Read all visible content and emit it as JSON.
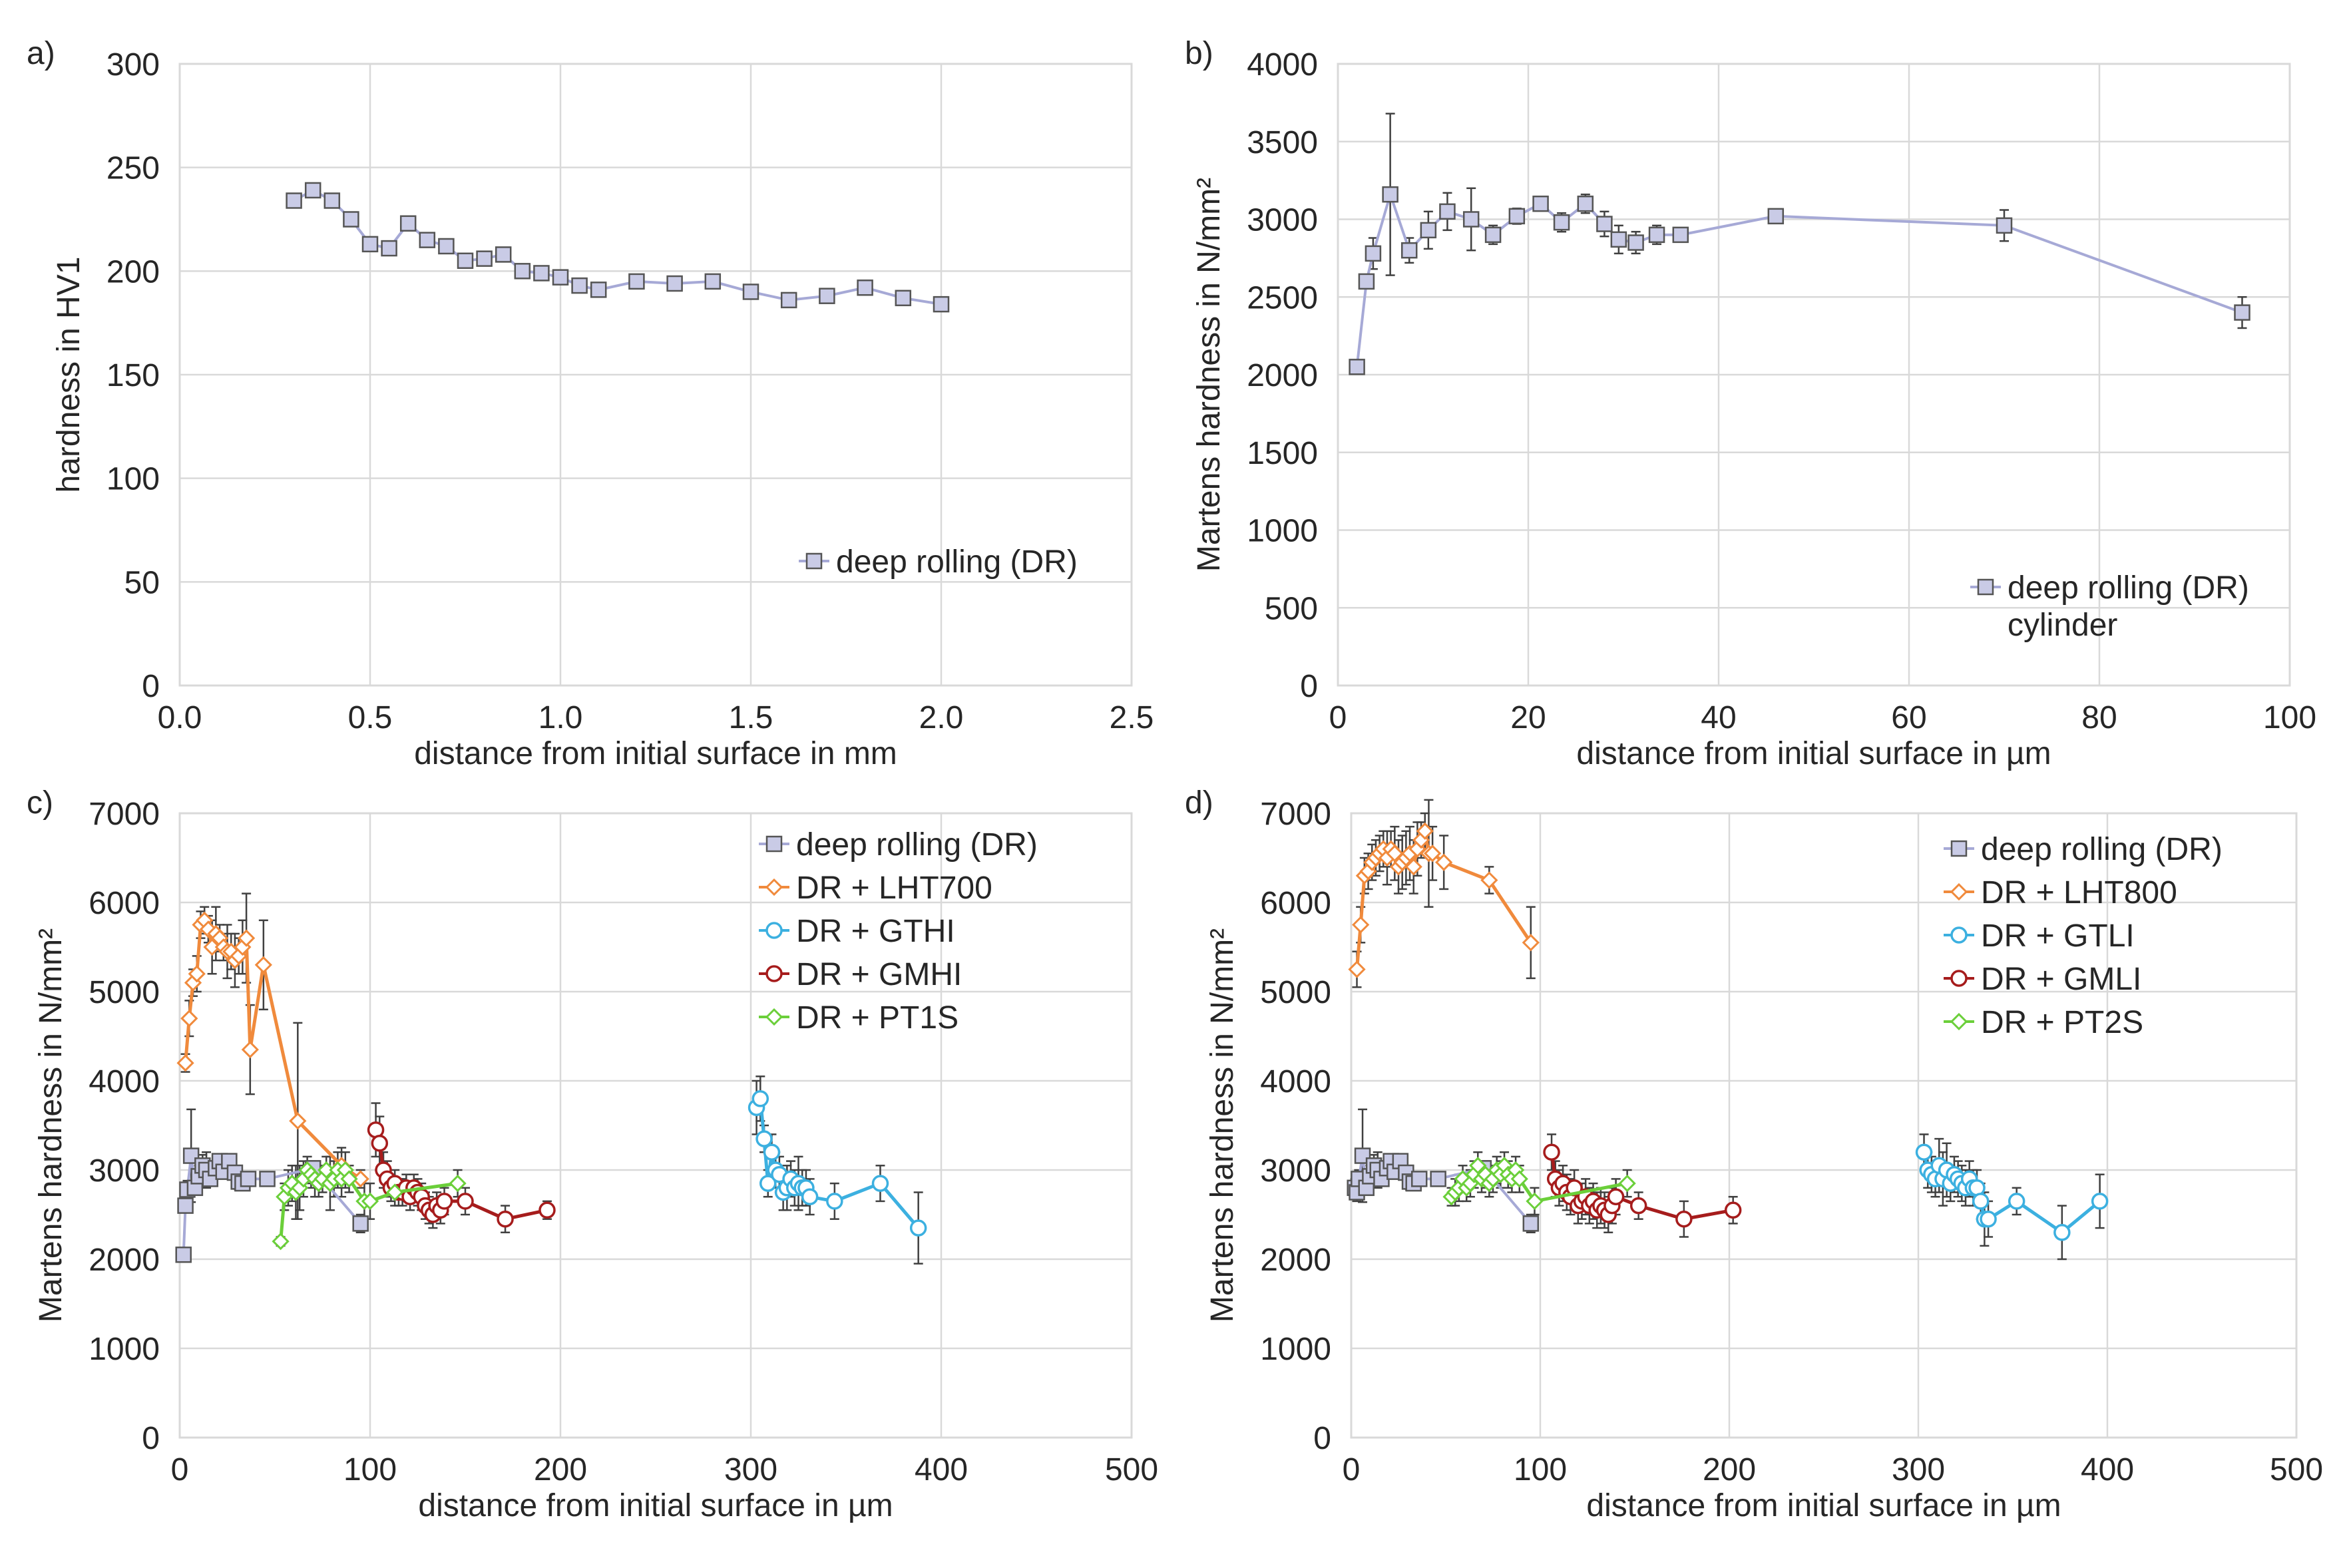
{
  "colors": {
    "dr": "#a6a9d6",
    "dr_fill": "#c9cbe6",
    "lht": "#f08a3c",
    "gt": "#3cb0e0",
    "gm": "#a61c1c",
    "pt": "#6bcf3a",
    "error_bar": "#404040",
    "grid": "#d9d9d9",
    "text": "#262626"
  },
  "chart_data": [
    {
      "panel": "a)",
      "type": "line",
      "xlabel": "distance from initial surface in mm",
      "ylabel": "hardness in HV1",
      "xlim": [
        0,
        2.5
      ],
      "ylim": [
        0,
        300
      ],
      "xticks": [
        0,
        0.5,
        1,
        1.5,
        2,
        2.5
      ],
      "xtick_labels": [
        "0.0",
        "0.5",
        "1.0",
        "1.5",
        "2.0",
        "2.5"
      ],
      "yticks": [
        0,
        50,
        100,
        150,
        200,
        250,
        300
      ],
      "ytick_labels": [
        "0",
        "50",
        "100",
        "150",
        "200",
        "250",
        "300"
      ],
      "legend_position": "bottom-right",
      "series": [
        {
          "name": "deep rolling (DR)",
          "color_key": "dr",
          "marker": "square",
          "x": [
            0.3,
            0.35,
            0.4,
            0.45,
            0.5,
            0.55,
            0.6,
            0.65,
            0.7,
            0.75,
            0.8,
            0.85,
            0.9,
            0.95,
            1.0,
            1.05,
            1.1,
            1.2,
            1.3,
            1.4,
            1.5,
            1.6,
            1.7,
            1.8,
            1.9,
            2.0
          ],
          "y": [
            234,
            239,
            234,
            225,
            213,
            211,
            223,
            215,
            212,
            205,
            206,
            208,
            200,
            199,
            197,
            193,
            191,
            195,
            194,
            195,
            190,
            186,
            188,
            192,
            187,
            184
          ]
        }
      ]
    },
    {
      "panel": "b)",
      "type": "line",
      "xlabel": "distance from initial surface in µm",
      "ylabel": "Martens hardness in N/mm²",
      "xlim": [
        0,
        100
      ],
      "ylim": [
        0,
        4000
      ],
      "xticks": [
        0,
        20,
        40,
        60,
        80,
        100
      ],
      "xtick_labels": [
        "0",
        "20",
        "40",
        "60",
        "80",
        "100"
      ],
      "yticks": [
        0,
        500,
        1000,
        1500,
        2000,
        2500,
        3000,
        3500,
        4000
      ],
      "ytick_labels": [
        "0",
        "500",
        "1000",
        "1500",
        "2000",
        "2500",
        "3000",
        "3500",
        "4000"
      ],
      "legend_position": "bottom-right",
      "series": [
        {
          "name": "deep rolling (DR)",
          "legend_extra": "cylinder",
          "color_key": "dr",
          "marker": "square",
          "x": [
            2,
            3,
            3.7,
            5.5,
            7.5,
            9.5,
            11.5,
            14,
            16.3,
            18.8,
            21.3,
            23.5,
            26,
            28,
            29.5,
            31.3,
            33.5,
            36,
            46,
            70,
            95
          ],
          "y": [
            2050,
            2600,
            2780,
            3160,
            2800,
            2930,
            3050,
            3000,
            2900,
            3020,
            3100,
            2980,
            3100,
            2970,
            2870,
            2850,
            2900,
            2900,
            3020,
            2960,
            2400
          ],
          "err": [
            0,
            0,
            100,
            520,
            80,
            120,
            120,
            200,
            60,
            50,
            40,
            60,
            60,
            80,
            90,
            70,
            60,
            40,
            30,
            100,
            100
          ]
        }
      ]
    },
    {
      "panel": "c)",
      "type": "line",
      "xlabel": "distance from initial surface in µm",
      "ylabel": "Martens hardness in N/mm²",
      "xlim": [
        0,
        500
      ],
      "ylim": [
        0,
        7000
      ],
      "xticks": [
        0,
        100,
        200,
        300,
        400,
        500
      ],
      "xtick_labels": [
        "0",
        "100",
        "200",
        "300",
        "400",
        "500"
      ],
      "yticks": [
        0,
        1000,
        2000,
        3000,
        4000,
        5000,
        6000,
        7000
      ],
      "ytick_labels": [
        "0",
        "1000",
        "2000",
        "3000",
        "4000",
        "5000",
        "6000",
        "7000"
      ],
      "legend_position": "top-right",
      "series": [
        {
          "name": "deep rolling (DR)",
          "color_key": "dr",
          "marker": "square",
          "x": [
            2,
            3,
            4,
            6,
            8,
            10,
            12,
            14,
            16,
            19,
            21,
            23,
            26,
            29,
            31,
            33,
            36,
            46,
            70,
            95
          ],
          "y": [
            2050,
            2600,
            2780,
            3160,
            2800,
            2930,
            3050,
            3000,
            2900,
            3020,
            3100,
            2980,
            3100,
            2970,
            2870,
            2850,
            2900,
            2900,
            3020,
            2400
          ],
          "err": [
            0,
            0,
            100,
            520,
            80,
            120,
            120,
            200,
            60,
            50,
            40,
            60,
            60,
            80,
            90,
            70,
            60,
            40,
            30,
            100
          ]
        },
        {
          "name": "DR + LHT700",
          "color_key": "lht",
          "marker": "diamond",
          "x": [
            3,
            5,
            7,
            9,
            11,
            13,
            15,
            17,
            19,
            21,
            23,
            25,
            27,
            29,
            31,
            33,
            35,
            37,
            44,
            62,
            85,
            95
          ],
          "y": [
            4200,
            4700,
            5100,
            5200,
            5750,
            5800,
            5700,
            5500,
            5650,
            5600,
            5500,
            5450,
            5450,
            5350,
            5400,
            5500,
            5600,
            4350,
            5300,
            3550,
            3050,
            2900
          ],
          "err": [
            100,
            200,
            150,
            200,
            150,
            150,
            150,
            300,
            300,
            150,
            150,
            300,
            200,
            300,
            200,
            300,
            500,
            500,
            500,
            1100,
            200,
            100
          ]
        },
        {
          "name": "DR + GTHI",
          "color_key": "gt",
          "marker": "circle",
          "x": [
            303,
            305,
            307,
            309,
            311,
            313,
            315,
            317,
            319,
            321,
            323,
            325,
            327,
            329,
            331,
            344,
            368,
            388
          ],
          "y": [
            3700,
            3800,
            3350,
            2850,
            3200,
            3000,
            2950,
            2750,
            2800,
            2900,
            2800,
            2850,
            2800,
            2800,
            2700,
            2650,
            2850,
            2350
          ],
          "err": [
            300,
            250,
            150,
            150,
            200,
            200,
            200,
            200,
            250,
            200,
            200,
            300,
            200,
            200,
            200,
            200,
            200,
            400
          ]
        },
        {
          "name": "DR + GMHI",
          "color_key": "gm",
          "marker": "circle",
          "x": [
            103,
            105,
            107,
            109,
            111,
            113,
            115,
            117,
            119,
            121,
            123,
            125,
            127,
            129,
            131,
            133,
            135,
            137,
            139,
            150,
            171,
            193
          ],
          "y": [
            3450,
            3300,
            3000,
            2900,
            2800,
            2850,
            2750,
            2750,
            2800,
            2700,
            2800,
            2750,
            2700,
            2600,
            2550,
            2500,
            2600,
            2550,
            2650,
            2650,
            2450,
            2550
          ],
          "err": [
            300,
            300,
            200,
            200,
            150,
            150,
            150,
            150,
            150,
            150,
            150,
            150,
            150,
            150,
            150,
            150,
            150,
            150,
            150,
            150,
            150,
            100
          ]
        },
        {
          "name": "DR + PT1S",
          "color_key": "pt",
          "marker": "diamond",
          "x": [
            53,
            55,
            57,
            59,
            61,
            63,
            65,
            67,
            69,
            71,
            73,
            75,
            77,
            79,
            81,
            83,
            85,
            87,
            89,
            97,
            100,
            113,
            146
          ],
          "y": [
            2200,
            2700,
            2800,
            2850,
            2750,
            2800,
            2900,
            3000,
            2950,
            2900,
            2850,
            2900,
            3000,
            2850,
            2900,
            3000,
            2900,
            3000,
            2900,
            2650,
            2650,
            2750,
            2850
          ],
          "err": [
            50,
            150,
            200,
            200,
            300,
            250,
            200,
            150,
            150,
            200,
            150,
            150,
            150,
            300,
            200,
            200,
            200,
            200,
            150,
            200,
            200,
            150,
            150
          ]
        }
      ]
    },
    {
      "panel": "d)",
      "type": "line",
      "xlabel": "distance from initial surface in µm",
      "ylabel": "Martens hardness in N/mm²",
      "xlim": [
        0,
        500
      ],
      "ylim": [
        0,
        7000
      ],
      "xticks": [
        0,
        100,
        200,
        300,
        400,
        500
      ],
      "xtick_labels": [
        "0",
        "100",
        "200",
        "300",
        "400",
        "500"
      ],
      "yticks": [
        0,
        1000,
        2000,
        3000,
        4000,
        5000,
        6000,
        7000
      ],
      "ytick_labels": [
        "0",
        "1000",
        "2000",
        "3000",
        "4000",
        "5000",
        "6000",
        "7000"
      ],
      "legend_position": "top-right",
      "series": [
        {
          "name": "deep rolling (DR)",
          "color_key": "dr",
          "marker": "square",
          "x": [
            2,
            3,
            4,
            6,
            8,
            10,
            12,
            14,
            16,
            19,
            21,
            23,
            26,
            29,
            31,
            33,
            36,
            46,
            70,
            95
          ],
          "y": [
            2800,
            2750,
            2900,
            3160,
            2800,
            2930,
            3050,
            3000,
            2900,
            3020,
            3100,
            2980,
            3100,
            2970,
            2870,
            2850,
            2900,
            2900,
            3020,
            2400
          ],
          "err": [
            100,
            100,
            100,
            520,
            80,
            120,
            120,
            200,
            60,
            50,
            40,
            60,
            60,
            80,
            90,
            70,
            60,
            40,
            30,
            100
          ]
        },
        {
          "name": "DR + LHT800",
          "color_key": "lht",
          "marker": "diamond",
          "x": [
            3,
            5,
            7,
            9,
            11,
            13,
            15,
            17,
            19,
            21,
            23,
            25,
            27,
            29,
            31,
            33,
            35,
            37,
            39,
            41,
            43,
            49,
            73,
            95
          ],
          "y": [
            5250,
            5750,
            6300,
            6350,
            6450,
            6500,
            6550,
            6600,
            6500,
            6600,
            6550,
            6400,
            6450,
            6500,
            6550,
            6400,
            6600,
            6700,
            6800,
            6550,
            6550,
            6450,
            6250,
            5550
          ],
          "err": [
            200,
            200,
            200,
            200,
            200,
            200,
            200,
            200,
            300,
            200,
            300,
            300,
            300,
            300,
            300,
            300,
            300,
            200,
            200,
            600,
            300,
            300,
            150,
            400
          ]
        },
        {
          "name": "DR + GTLI",
          "color_key": "gt",
          "marker": "circle",
          "x": [
            303,
            305,
            307,
            309,
            311,
            313,
            315,
            317,
            319,
            321,
            323,
            325,
            327,
            329,
            331,
            333,
            335,
            337,
            352,
            376,
            396
          ],
          "y": [
            3200,
            3000,
            2950,
            2900,
            3050,
            2900,
            3000,
            2850,
            2950,
            2900,
            2850,
            2800,
            2900,
            2800,
            2800,
            2650,
            2450,
            2450,
            2650,
            2300,
            2650
          ],
          "err": [
            200,
            200,
            200,
            200,
            300,
            300,
            300,
            200,
            200,
            200,
            200,
            200,
            200,
            200,
            200,
            200,
            300,
            200,
            150,
            300,
            300
          ]
        },
        {
          "name": "DR + GMLI",
          "color_key": "gm",
          "marker": "circle",
          "x": [
            106,
            108,
            110,
            112,
            114,
            116,
            118,
            120,
            122,
            124,
            126,
            128,
            130,
            132,
            134,
            136,
            138,
            140,
            152,
            176,
            202
          ],
          "y": [
            3200,
            2900,
            2800,
            2850,
            2750,
            2700,
            2800,
            2600,
            2650,
            2700,
            2600,
            2650,
            2550,
            2600,
            2550,
            2500,
            2600,
            2700,
            2600,
            2450,
            2550
          ],
          "err": [
            200,
            200,
            200,
            200,
            200,
            200,
            200,
            200,
            200,
            200,
            200,
            200,
            200,
            200,
            200,
            200,
            200,
            200,
            150,
            200,
            150
          ]
        },
        {
          "name": "DR + PT2S",
          "color_key": "pt",
          "marker": "diamond",
          "x": [
            53,
            55,
            57,
            59,
            61,
            63,
            65,
            67,
            69,
            71,
            73,
            75,
            77,
            79,
            81,
            83,
            85,
            87,
            89,
            97,
            146
          ],
          "y": [
            2700,
            2750,
            2800,
            2900,
            2800,
            2850,
            2950,
            3050,
            2900,
            2950,
            2850,
            2900,
            3000,
            2950,
            3050,
            2950,
            2900,
            3000,
            2900,
            2650,
            2850
          ],
          "err": [
            100,
            150,
            150,
            150,
            150,
            150,
            150,
            150,
            150,
            150,
            150,
            150,
            150,
            150,
            150,
            150,
            150,
            150,
            150,
            150,
            150
          ]
        }
      ]
    }
  ]
}
